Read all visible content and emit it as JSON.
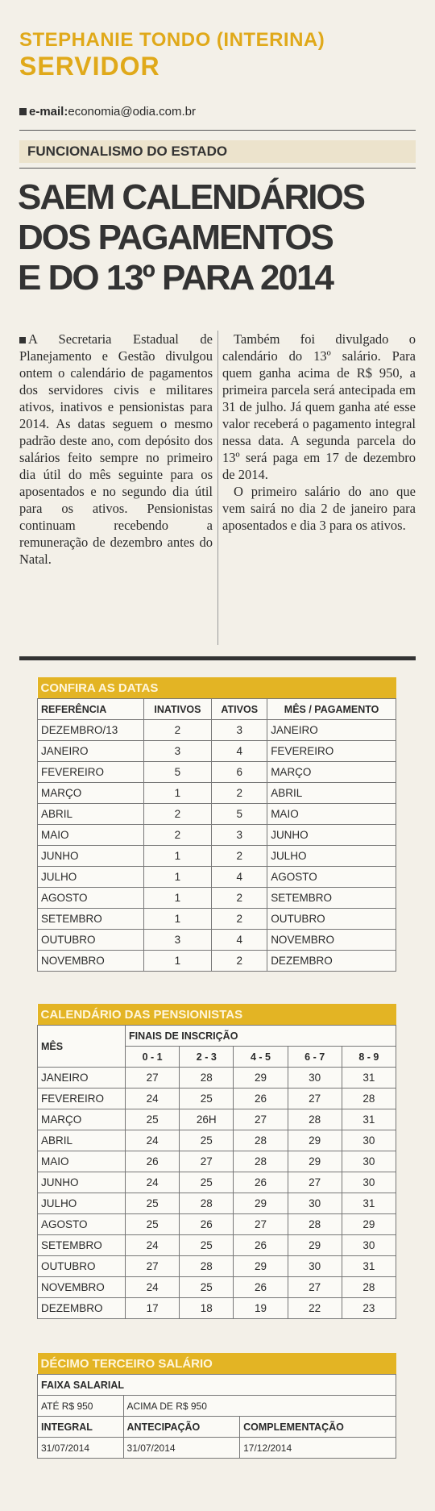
{
  "header": {
    "author": "STEPHANIE TONDO (INTERINA)",
    "column": "SERVIDOR",
    "email_label": "e-mail:",
    "email": "economia@odia.com.br"
  },
  "section": "FUNCIONALISMO DO ESTADO",
  "headline": [
    "SAEM CALENDÁRIOS",
    "DOS PAGAMENTOS",
    "E DO 13º PARA 2014"
  ],
  "body": [
    "A Secretaria Estadual de Planejamento e Gestão divulgou ontem o calendário de pagamentos dos servidores civis e militares ativos, inativos e pensionistas para 2014. As datas seguem o mesmo padrão deste ano, com depósito dos salários feito sempre no primeiro dia útil do mês seguinte para os aposentados e no segundo dia útil para os ativos. Pensionistas continuam recebendo a remuneração de dezembro antes do Natal.",
    "Também foi divulgado o calendário do 13º salário. Para quem ganha acima de R$ 950, a primeira parcela será antecipada em 31 de julho. Já quem ganha até esse valor receberá o pagamento integral nessa data. A segunda parcela do 13º será paga em 17 de dezembro de 2014.",
    "O primeiro salário do ano que vem sairá no dia 2 de janeiro para aposentados e dia 3 para os ativos."
  ],
  "table1": {
    "title": "CONFIRA AS DATAS",
    "headers": [
      "REFERÊNCIA",
      "INATIVOS",
      "ATIVOS",
      "MÊS / PAGAMENTO"
    ],
    "rows": [
      [
        "DEZEMBRO/13",
        2,
        3,
        "JANEIRO"
      ],
      [
        "JANEIRO",
        3,
        4,
        "FEVEREIRO"
      ],
      [
        "FEVEREIRO",
        5,
        6,
        "MARÇO"
      ],
      [
        "MARÇO",
        1,
        2,
        "ABRIL"
      ],
      [
        "ABRIL",
        2,
        5,
        "MAIO"
      ],
      [
        "MAIO",
        2,
        3,
        "JUNHO"
      ],
      [
        "JUNHO",
        1,
        2,
        "JULHO"
      ],
      [
        "JULHO",
        1,
        4,
        "AGOSTO"
      ],
      [
        "AGOSTO",
        1,
        2,
        "SETEMBRO"
      ],
      [
        "SETEMBRO",
        1,
        2,
        "OUTUBRO"
      ],
      [
        "OUTUBRO",
        3,
        4,
        "NOVEMBRO"
      ],
      [
        "NOVEMBRO",
        1,
        2,
        "DEZEMBRO"
      ]
    ]
  },
  "table2": {
    "title": "CALENDÁRIO DAS PENSIONISTAS",
    "month_header": "MÊS",
    "group_header": "FINAIS DE INSCRIÇÃO",
    "headers": [
      "0 - 1",
      "2 - 3",
      "4 - 5",
      "6 - 7",
      "8 - 9"
    ],
    "rows": [
      [
        "JANEIRO",
        27,
        28,
        29,
        30,
        31
      ],
      [
        "FEVEREIRO",
        24,
        25,
        26,
        27,
        28
      ],
      [
        "MARÇO",
        25,
        "26H",
        27,
        28,
        31
      ],
      [
        "ABRIL",
        24,
        25,
        28,
        29,
        30
      ],
      [
        "MAIO",
        26,
        27,
        28,
        29,
        30
      ],
      [
        "JUNHO",
        24,
        25,
        26,
        27,
        30
      ],
      [
        "JULHO",
        25,
        28,
        29,
        30,
        31
      ],
      [
        "AGOSTO",
        25,
        26,
        27,
        28,
        29
      ],
      [
        "SETEMBRO",
        24,
        25,
        26,
        29,
        30
      ],
      [
        "OUTUBRO",
        27,
        28,
        29,
        30,
        31
      ],
      [
        "NOVEMBRO",
        24,
        25,
        26,
        27,
        28
      ],
      [
        "DEZEMBRO",
        17,
        18,
        19,
        22,
        23
      ]
    ]
  },
  "table3": {
    "title": "DÉCIMO TERCEIRO SALÁRIO",
    "header": "FAIXA SALARIAL",
    "ranges": [
      "ATÉ R$ 950",
      "ACIMA DE R$ 950"
    ],
    "columns": [
      "INTEGRAL",
      "ANTECIPAÇÃO",
      "COMPLEMENTAÇÃO"
    ],
    "dates": [
      "31/07/2014",
      "31/07/2014",
      "17/12/2014"
    ]
  }
}
